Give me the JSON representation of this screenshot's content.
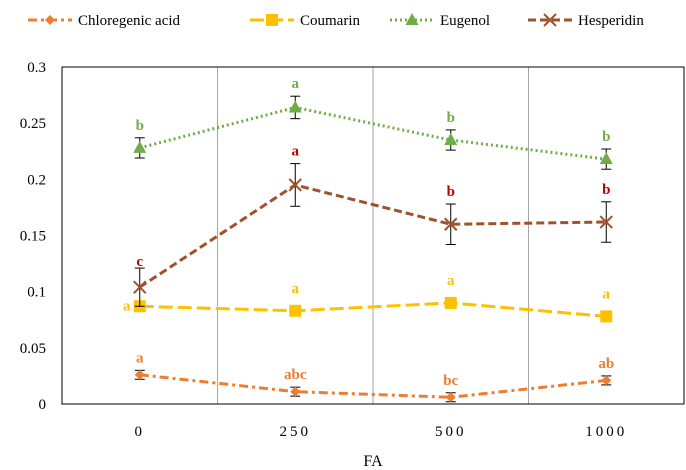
{
  "chart_data": {
    "type": "line",
    "categories": [
      "0",
      "250",
      "500",
      "1000"
    ],
    "xlabel": "FA",
    "ylabel": "",
    "ylim": [
      0,
      0.3
    ],
    "y_ticks": [
      0,
      0.05,
      0.1,
      0.15,
      0.2,
      0.25,
      0.3
    ],
    "y_tick_labels": [
      "0",
      "0.05",
      "0.1",
      "0.15",
      "0.2",
      "0.25",
      "0.3"
    ],
    "grid": "vertical",
    "legend_position": "top",
    "series": [
      {
        "name": "Chloregenic acid",
        "color": "#ED7D31",
        "line_style": "dash-dot",
        "marker": "diamond",
        "values": [
          0.026,
          0.011,
          0.006,
          0.021
        ],
        "errors": [
          0.004,
          0.004,
          0.004,
          0.004
        ],
        "sig_labels": [
          "a",
          "abc",
          "bc",
          "ab"
        ],
        "sig_color": "#ED7D31"
      },
      {
        "name": "Coumarin",
        "color": "#FFC000",
        "line_style": "long-dash",
        "marker": "square",
        "values": [
          0.087,
          0.083,
          0.09,
          0.078
        ],
        "errors": [
          0,
          0,
          0,
          0
        ],
        "sig_labels": [
          "a",
          "a",
          "a",
          "a"
        ],
        "sig_color": "#FFC000"
      },
      {
        "name": "Eugenol",
        "color": "#70AD47",
        "line_style": "dotted",
        "marker": "triangle",
        "values": [
          0.228,
          0.264,
          0.235,
          0.218
        ],
        "errors": [
          0.009,
          0.01,
          0.009,
          0.009
        ],
        "sig_labels": [
          "b",
          "a",
          "b",
          "b"
        ],
        "sig_color": "#70AD47"
      },
      {
        "name": "Hesperidin",
        "color": "#A0522D",
        "line_style": "dashed",
        "marker": "x",
        "values": [
          0.104,
          0.195,
          0.16,
          0.162
        ],
        "errors": [
          0.017,
          0.019,
          0.018,
          0.018
        ],
        "sig_labels": [
          "c",
          "a",
          "b",
          "b"
        ],
        "sig_color": "#C00000"
      }
    ]
  }
}
